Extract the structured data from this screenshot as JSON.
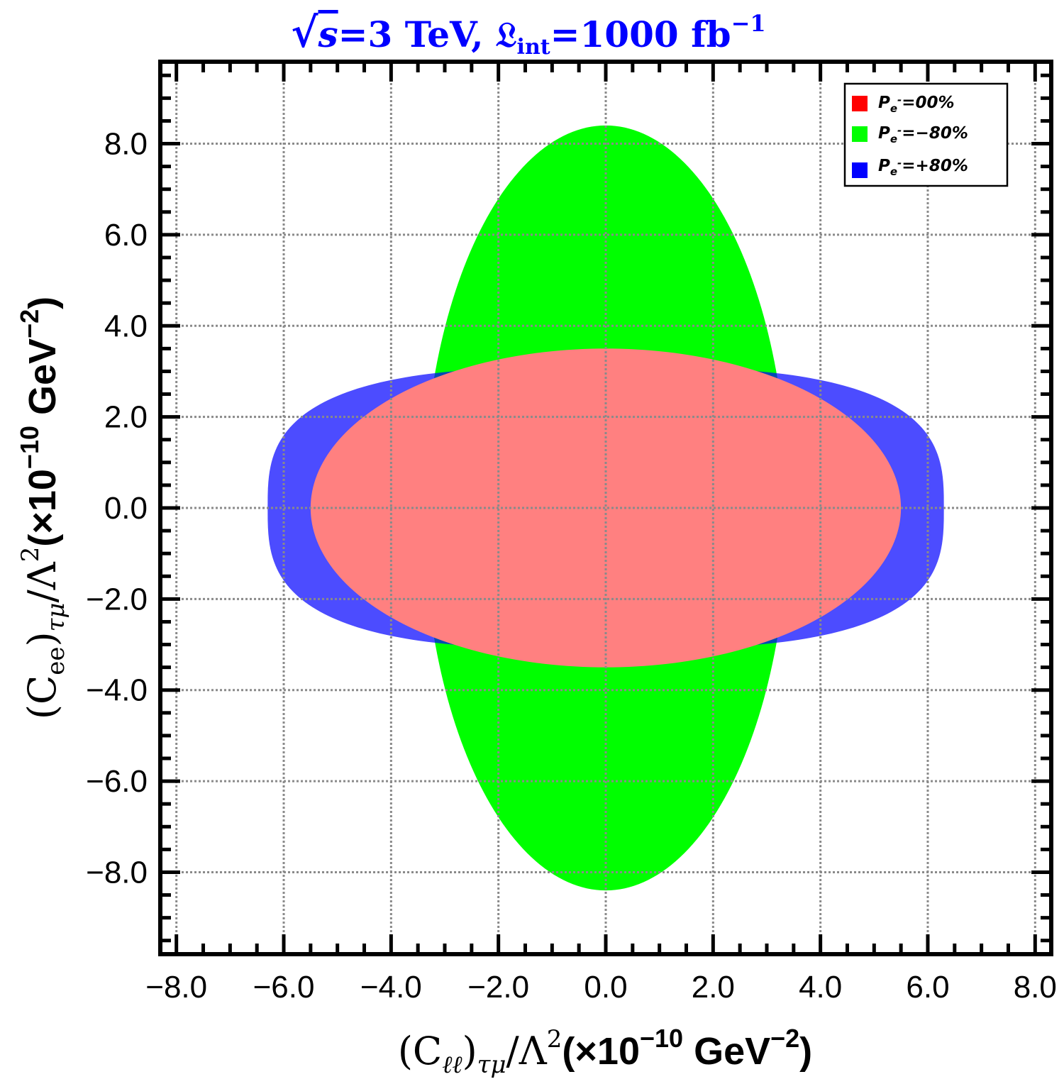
{
  "chart_data": {
    "type": "contour-region",
    "title": {
      "sqrt_symbol": "√",
      "sqrt_var": "s",
      "energy": "=3 TeV, ",
      "lumi_symbol": "𝔏",
      "lumi_sub": "int",
      "lumi_value": "=1000 fb",
      "lumi_exp": "−1"
    },
    "xlabel": {
      "math": "(C",
      "sub": "ℓℓ",
      "close": ")",
      "sub2": "τμ",
      "rest": "/Λ",
      "sup": "2",
      "unit_open": "(×10",
      "unit_exp": "−10",
      "unit_mid": " GeV",
      "unit_exp2": "−2",
      "unit_close": ")"
    },
    "ylabel": {
      "math": "(C",
      "sub": "ee",
      "close": ")",
      "sub2": "τμ",
      "rest": "/Λ",
      "sup": "2",
      "unit_open": "(×10",
      "unit_exp": "−10",
      "unit_mid": " GeV",
      "unit_exp2": "−2",
      "unit_close": ")"
    },
    "xlim": [
      -8.3,
      8.3
    ],
    "ylim": [
      -9.8,
      9.8
    ],
    "xticks": [
      -8,
      -6,
      -4,
      -2,
      0,
      2,
      4,
      6,
      8
    ],
    "yticks": [
      -8,
      -6,
      -4,
      -2,
      0,
      2,
      4,
      6,
      8
    ],
    "xtick_labels": [
      "−8.0",
      "−6.0",
      "−4.0",
      "−2.0",
      "0.0",
      "2.0",
      "4.0",
      "6.0",
      "8.0"
    ],
    "ytick_labels": [
      "−8.0",
      "−6.0",
      "−4.0",
      "−2.0",
      "0.0",
      "2.0",
      "4.0",
      "6.0",
      "8.0"
    ],
    "grid": true,
    "legend_position": "top-right",
    "series": [
      {
        "name": "P_e- = -80%",
        "label_main": "P",
        "label_sub": "e",
        "label_sup": "-",
        "label_value": "=−80%",
        "color": "#00ff00",
        "region": {
          "x_half_width": 3.4,
          "y_half_width": 8.4,
          "center": [
            0,
            0
          ]
        }
      },
      {
        "name": "P_e- = +80%",
        "label_main": "P",
        "label_sub": "e",
        "label_sup": "-",
        "label_value": "=+80%",
        "color": "#0000ff",
        "region": {
          "x_half_width": 6.3,
          "y_half_width": 3.1,
          "center": [
            0,
            0
          ]
        }
      },
      {
        "name": "P_e- = 00%",
        "label_main": "P",
        "label_sub": "e",
        "label_sup": "-",
        "label_value": "=00%",
        "color": "#ff0000",
        "region": {
          "x_half_width": 5.5,
          "y_half_width": 3.5,
          "center": [
            0,
            0
          ]
        }
      }
    ],
    "legend_order": [
      2,
      0,
      1
    ]
  }
}
